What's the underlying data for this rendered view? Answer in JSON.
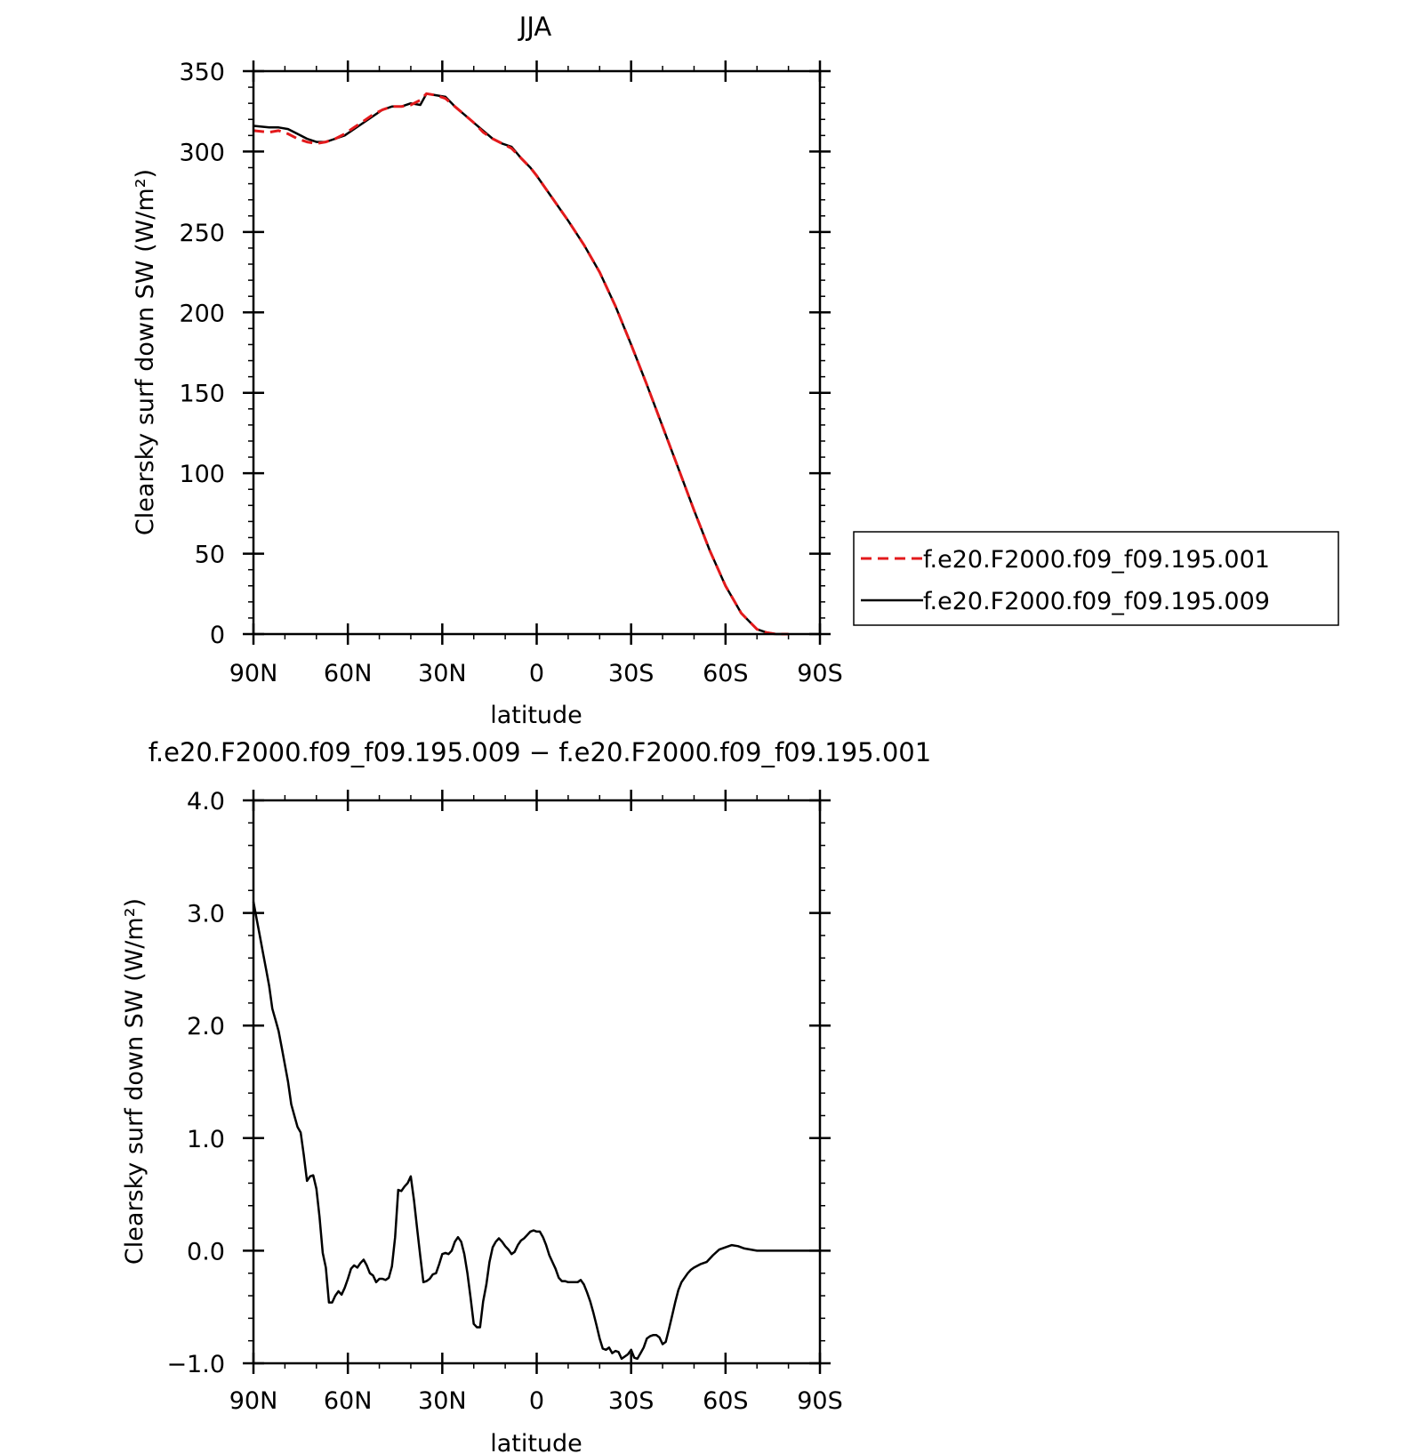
{
  "chart_data": [
    {
      "type": "line",
      "title": "JJA",
      "xlabel": "latitude",
      "ylabel": "Clearsky surf down SW (W/m²)",
      "xlim": [
        90,
        -90
      ],
      "ylim": [
        0,
        350
      ],
      "x_ticks": [
        90,
        60,
        30,
        0,
        -30,
        -60,
        -90
      ],
      "x_tick_labels": [
        "90N",
        "60N",
        "30N",
        "0",
        "30S",
        "60S",
        "90S"
      ],
      "y_ticks": [
        0,
        50,
        100,
        150,
        200,
        250,
        300,
        350
      ],
      "y_tick_labels": [
        "0",
        "50",
        "100",
        "150",
        "200",
        "250",
        "300",
        "350"
      ],
      "legend_placement": "right",
      "series": [
        {
          "name": "f.e20.F2000.f09_f09.195.001",
          "color": "#e31a1c",
          "dash": "dashed",
          "x": [
            90,
            85,
            82,
            79,
            76,
            73,
            70,
            67,
            64,
            61,
            58,
            55,
            52,
            49,
            46,
            43,
            40,
            37,
            35,
            32,
            29,
            26,
            23,
            20,
            17,
            14,
            11,
            8,
            5,
            2,
            0,
            -5,
            -10,
            -15,
            -20,
            -25,
            -30,
            -35,
            -40,
            -45,
            -50,
            -55,
            -60,
            -65,
            -70,
            -73,
            -76,
            -78,
            -80
          ],
          "values": [
            313,
            312,
            313,
            311,
            308,
            306,
            305,
            306,
            308,
            311,
            315,
            319,
            323,
            326,
            328,
            328,
            329,
            332,
            336,
            335,
            333,
            328,
            323,
            318,
            312,
            308,
            305,
            302,
            296,
            290,
            285,
            271,
            257,
            242,
            225,
            204,
            180,
            155,
            129,
            103,
            77,
            52,
            30,
            13,
            3,
            1,
            0,
            0,
            0
          ]
        },
        {
          "name": "f.e20.F2000.f09_f09.195.009",
          "color": "#000000",
          "dash": "solid",
          "x": [
            90,
            85,
            82,
            79,
            76,
            73,
            70,
            67,
            64,
            61,
            58,
            55,
            52,
            49,
            46,
            43,
            40,
            37,
            35,
            32,
            29,
            26,
            23,
            20,
            17,
            14,
            11,
            8,
            5,
            2,
            0,
            -5,
            -10,
            -15,
            -20,
            -25,
            -30,
            -35,
            -40,
            -45,
            -50,
            -55,
            -60,
            -65,
            -70,
            -73,
            -76,
            -78,
            -80
          ],
          "values": [
            316,
            315,
            315,
            314,
            311,
            308,
            306,
            306,
            308,
            310,
            314,
            318,
            322,
            326,
            328,
            328,
            330,
            329,
            336,
            335,
            334,
            328,
            323,
            318,
            313,
            308,
            305,
            303,
            296,
            290,
            285,
            271,
            257,
            242,
            225,
            204,
            180,
            155,
            129,
            103,
            77,
            52,
            30,
            13,
            3,
            1,
            0,
            0,
            0
          ]
        }
      ]
    },
    {
      "type": "line",
      "title": "f.e20.F2000.f09_f09.195.009 − f.e20.F2000.f09_f09.195.001",
      "xlabel": "latitude",
      "ylabel": "Clearsky surf down SW (W/m²)",
      "xlim": [
        90,
        -90
      ],
      "ylim": [
        -1.0,
        4.0
      ],
      "x_ticks": [
        90,
        60,
        30,
        0,
        -30,
        -60,
        -90
      ],
      "x_tick_labels": [
        "90N",
        "60N",
        "30N",
        "0",
        "30S",
        "60S",
        "90S"
      ],
      "y_ticks": [
        -1.0,
        0.0,
        1.0,
        2.0,
        3.0,
        4.0
      ],
      "y_tick_labels": [
        "−1.0",
        "0.0",
        "1.0",
        "2.0",
        "3.0",
        "4.0"
      ],
      "series": [
        {
          "color": "#000000",
          "dash": "solid",
          "x": [
            90,
            89,
            88,
            87,
            86,
            85,
            84,
            83,
            82,
            81,
            80,
            79,
            78,
            77,
            76,
            75,
            74,
            73,
            72,
            71,
            70,
            69,
            68,
            67,
            66,
            65,
            64,
            63,
            62,
            61,
            60,
            59,
            58,
            57,
            56,
            55,
            54,
            53,
            52,
            51,
            50,
            49,
            48,
            47,
            46,
            45,
            44,
            43,
            42,
            41,
            40,
            39,
            38,
            37,
            36,
            35,
            34,
            33,
            32,
            31,
            30,
            29,
            28,
            27,
            26,
            25,
            24,
            23,
            22,
            21,
            20,
            19,
            18,
            17,
            16,
            15,
            14,
            13,
            12,
            11,
            10,
            9,
            8,
            7,
            6,
            5,
            4,
            3,
            2,
            1,
            0,
            -1,
            -2,
            -3,
            -4,
            -5,
            -6,
            -7,
            -8,
            -9,
            -10,
            -11,
            -12,
            -13,
            -14,
            -15,
            -16,
            -17,
            -18,
            -19,
            -20,
            -21,
            -22,
            -23,
            -24,
            -25,
            -26,
            -27,
            -28,
            -29,
            -30,
            -31,
            -32,
            -33,
            -34,
            -35,
            -36,
            -37,
            -38,
            -39,
            -40,
            -41,
            -42,
            -43,
            -44,
            -45,
            -46,
            -47,
            -48,
            -49,
            -50,
            -52,
            -54,
            -56,
            -58,
            -60,
            -62,
            -64,
            -66,
            -68,
            -70,
            -72,
            -75,
            -80,
            -85,
            -90
          ],
          "values": [
            3.1,
            2.95,
            2.8,
            2.65,
            2.5,
            2.35,
            2.15,
            2.05,
            1.95,
            1.8,
            1.65,
            1.5,
            1.3,
            1.2,
            1.1,
            1.05,
            0.85,
            0.62,
            0.66,
            0.67,
            0.55,
            0.3,
            -0.02,
            -0.15,
            -0.46,
            -0.46,
            -0.4,
            -0.36,
            -0.39,
            -0.33,
            -0.25,
            -0.16,
            -0.13,
            -0.15,
            -0.11,
            -0.08,
            -0.13,
            -0.2,
            -0.22,
            -0.28,
            -0.25,
            -0.25,
            -0.26,
            -0.24,
            -0.14,
            0.12,
            0.54,
            0.53,
            0.57,
            0.6,
            0.66,
            0.45,
            0.2,
            -0.05,
            -0.28,
            -0.27,
            -0.25,
            -0.21,
            -0.2,
            -0.12,
            -0.03,
            -0.02,
            -0.03,
            0.0,
            0.08,
            0.12,
            0.08,
            -0.03,
            -0.2,
            -0.42,
            -0.65,
            -0.68,
            -0.68,
            -0.45,
            -0.3,
            -0.1,
            0.03,
            0.08,
            0.11,
            0.08,
            0.04,
            0.01,
            -0.03,
            -0.01,
            0.05,
            0.09,
            0.11,
            0.14,
            0.17,
            0.18,
            0.17,
            0.17,
            0.12,
            0.05,
            -0.04,
            -0.1,
            -0.16,
            -0.24,
            -0.27,
            -0.27,
            -0.28,
            -0.28,
            -0.28,
            -0.28,
            -0.26,
            -0.3,
            -0.37,
            -0.45,
            -0.55,
            -0.66,
            -0.78,
            -0.87,
            -0.88,
            -0.86,
            -0.91,
            -0.89,
            -0.9,
            -0.96,
            -0.94,
            -0.92,
            -0.88,
            -0.95,
            -0.96,
            -0.91,
            -0.86,
            -0.78,
            -0.76,
            -0.75,
            -0.75,
            -0.77,
            -0.83,
            -0.81,
            -0.7,
            -0.58,
            -0.46,
            -0.35,
            -0.28,
            -0.24,
            -0.2,
            -0.17,
            -0.15,
            -0.12,
            -0.1,
            -0.04,
            0.01,
            0.03,
            0.05,
            0.04,
            0.02,
            0.01,
            0.0,
            0.0,
            0.0,
            0.0,
            0.0,
            0.0
          ]
        }
      ]
    }
  ]
}
